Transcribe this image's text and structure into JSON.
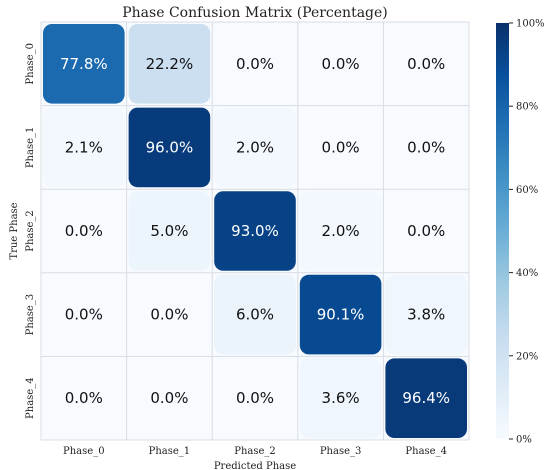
{
  "chart_data": {
    "type": "heatmap",
    "title": "Phase Confusion Matrix (Percentage)",
    "xlabel": "Predicted Phase",
    "ylabel": "True Phase",
    "x_categories": [
      "Phase_0",
      "Phase_1",
      "Phase_2",
      "Phase_3",
      "Phase_4"
    ],
    "y_categories": [
      "Phase_0",
      "Phase_1",
      "Phase_2",
      "Phase_3",
      "Phase_4"
    ],
    "values": [
      [
        77.8,
        22.2,
        0.0,
        0.0,
        0.0
      ],
      [
        2.1,
        96.0,
        2.0,
        0.0,
        0.0
      ],
      [
        0.0,
        5.0,
        93.0,
        2.0,
        0.0
      ],
      [
        0.0,
        0.0,
        6.0,
        90.1,
        3.8
      ],
      [
        0.0,
        0.0,
        0.0,
        3.6,
        96.4
      ]
    ],
    "cell_labels": [
      [
        "77.8%",
        "22.2%",
        "0.0%",
        "0.0%",
        "0.0%"
      ],
      [
        "2.1%",
        "96.0%",
        "2.0%",
        "0.0%",
        "0.0%"
      ],
      [
        "0.0%",
        "5.0%",
        "93.0%",
        "2.0%",
        "0.0%"
      ],
      [
        "0.0%",
        "0.0%",
        "6.0%",
        "90.1%",
        "3.8%"
      ],
      [
        "0.0%",
        "0.0%",
        "0.0%",
        "3.6%",
        "96.4%"
      ]
    ],
    "colorbar": {
      "range": [
        0,
        100
      ],
      "ticks": [
        0,
        20,
        40,
        60,
        80,
        100
      ],
      "tick_labels": [
        "0%",
        "20%",
        "40%",
        "60%",
        "80%",
        "100%"
      ],
      "colormap": "Blues",
      "color_low": "#f7fbff",
      "color_high": "#08306b"
    },
    "grid": true
  }
}
